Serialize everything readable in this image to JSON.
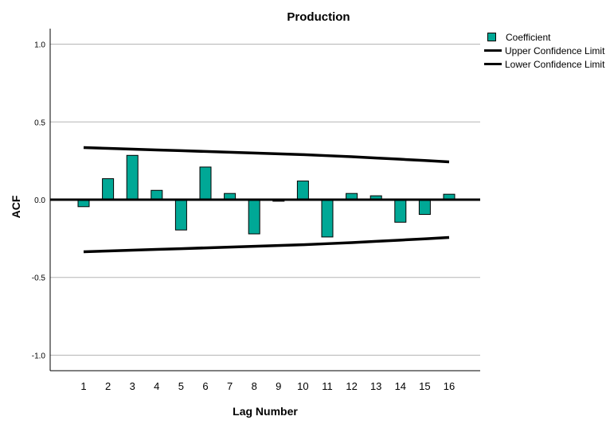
{
  "chart_data": {
    "type": "bar",
    "title": "Production",
    "xlabel": "Lag Number",
    "ylabel": "ACF",
    "ylim": [
      -1.1,
      1.1
    ],
    "yticks": [
      "1.0",
      "0.5",
      "0.0",
      "-0.5",
      "-1.0"
    ],
    "ytick_values": [
      1.0,
      0.5,
      0.0,
      -0.5,
      -1.0
    ],
    "grid": true,
    "legend_position": "top-right",
    "categories": [
      "1",
      "2",
      "3",
      "4",
      "5",
      "6",
      "7",
      "8",
      "9",
      "10",
      "11",
      "12",
      "13",
      "14",
      "15",
      "16"
    ],
    "series": [
      {
        "name": "Coefficient",
        "type": "bar",
        "color": "#00A896",
        "values": [
          -0.045,
          0.135,
          0.285,
          0.06,
          -0.195,
          0.21,
          0.04,
          -0.22,
          -0.01,
          0.12,
          -0.24,
          0.04,
          0.025,
          -0.145,
          -0.095,
          0.035
        ]
      },
      {
        "name": "Upper Confidence Limit",
        "type": "line",
        "color": "#000000",
        "values": [
          0.335,
          0.33,
          0.325,
          0.32,
          0.315,
          0.31,
          0.305,
          0.3,
          0.295,
          0.29,
          0.283,
          0.276,
          0.268,
          0.26,
          0.252,
          0.243
        ]
      },
      {
        "name": "Lower Confidence Limit",
        "type": "line",
        "color": "#000000",
        "values": [
          -0.335,
          -0.33,
          -0.325,
          -0.32,
          -0.315,
          -0.31,
          -0.305,
          -0.3,
          -0.295,
          -0.29,
          -0.283,
          -0.276,
          -0.268,
          -0.26,
          -0.252,
          -0.243
        ]
      }
    ]
  }
}
